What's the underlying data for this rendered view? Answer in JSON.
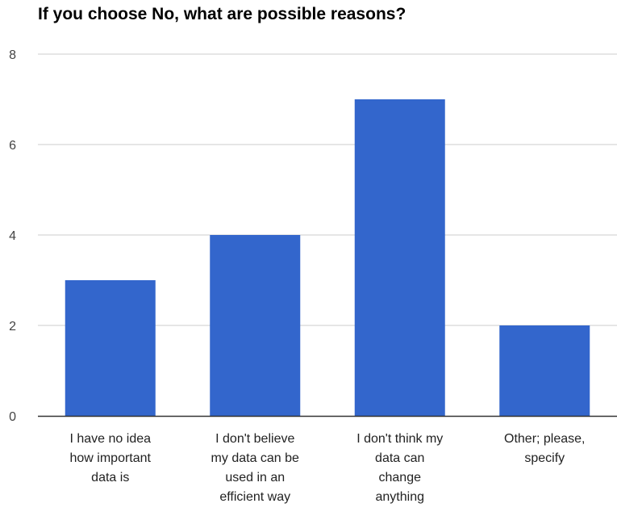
{
  "chart_data": {
    "type": "bar",
    "title": "If you choose No, what are possible reasons?",
    "xlabel": "",
    "ylabel": "",
    "categories": [
      [
        "I have no idea",
        "how important",
        "data is"
      ],
      [
        "I don't believe",
        "my data can be",
        "used in an",
        "efficient way"
      ],
      [
        "I don't think my",
        "data can",
        "change",
        "anything"
      ],
      [
        "Other; please,",
        "specify"
      ]
    ],
    "values": [
      3,
      4,
      7,
      2
    ],
    "ylim": [
      0,
      8
    ],
    "yticks": [
      "0",
      "2",
      "4",
      "6",
      "8"
    ],
    "grid": true,
    "legend": "none",
    "colors": {
      "bar": "#3366cc",
      "grid": "#cccccc",
      "baseline": "#333333"
    }
  }
}
